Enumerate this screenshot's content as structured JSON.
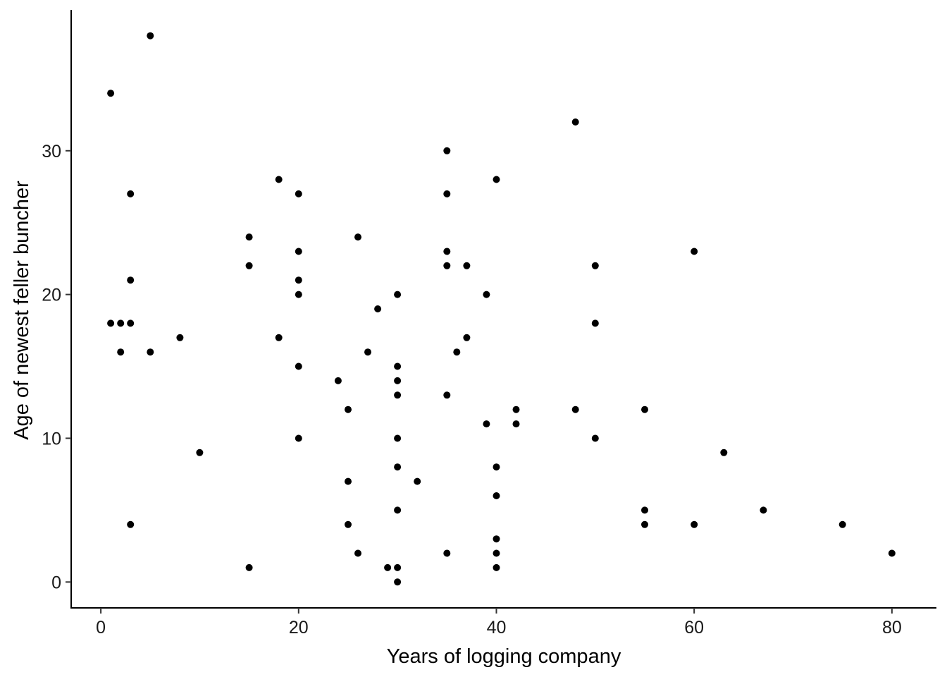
{
  "chart_data": {
    "type": "scatter",
    "title": "",
    "xlabel": "Years of logging company",
    "ylabel": "Age of newest feller buncher",
    "xlim": [
      -3,
      84.5
    ],
    "ylim": [
      -1.8,
      39.8
    ],
    "xticks": [
      0,
      20,
      40,
      60,
      80
    ],
    "yticks": [
      0,
      10,
      20,
      30
    ],
    "grid": false,
    "legend": "none",
    "point_color": "#000000",
    "points": [
      [
        1,
        34
      ],
      [
        1,
        18
      ],
      [
        2,
        18
      ],
      [
        2,
        16
      ],
      [
        3,
        27
      ],
      [
        3,
        21
      ],
      [
        3,
        18
      ],
      [
        3,
        4
      ],
      [
        5,
        38
      ],
      [
        5,
        16
      ],
      [
        8,
        17
      ],
      [
        10,
        9
      ],
      [
        15,
        24
      ],
      [
        15,
        22
      ],
      [
        15,
        1
      ],
      [
        18,
        28
      ],
      [
        18,
        17
      ],
      [
        20,
        27
      ],
      [
        20,
        23
      ],
      [
        20,
        21
      ],
      [
        20,
        20
      ],
      [
        20,
        15
      ],
      [
        20,
        10
      ],
      [
        24,
        14
      ],
      [
        25,
        12
      ],
      [
        25,
        7
      ],
      [
        25,
        4
      ],
      [
        26,
        24
      ],
      [
        26,
        2
      ],
      [
        27,
        16
      ],
      [
        28,
        19
      ],
      [
        29,
        1
      ],
      [
        30,
        20
      ],
      [
        30,
        15
      ],
      [
        30,
        14
      ],
      [
        30,
        13
      ],
      [
        30,
        10
      ],
      [
        30,
        8
      ],
      [
        30,
        5
      ],
      [
        30,
        1
      ],
      [
        30,
        0
      ],
      [
        32,
        7
      ],
      [
        35,
        30
      ],
      [
        35,
        27
      ],
      [
        35,
        23
      ],
      [
        35,
        22
      ],
      [
        35,
        13
      ],
      [
        35,
        2
      ],
      [
        36,
        16
      ],
      [
        37,
        22
      ],
      [
        37,
        17
      ],
      [
        39,
        20
      ],
      [
        39,
        11
      ],
      [
        40,
        28
      ],
      [
        40,
        8
      ],
      [
        40,
        6
      ],
      [
        40,
        3
      ],
      [
        40,
        2
      ],
      [
        40,
        1
      ],
      [
        42,
        12
      ],
      [
        42,
        11
      ],
      [
        48,
        32
      ],
      [
        48,
        12
      ],
      [
        50,
        22
      ],
      [
        50,
        18
      ],
      [
        50,
        10
      ],
      [
        55,
        12
      ],
      [
        55,
        5
      ],
      [
        55,
        4
      ],
      [
        60,
        23
      ],
      [
        60,
        4
      ],
      [
        63,
        9
      ],
      [
        67,
        5
      ],
      [
        75,
        4
      ],
      [
        80,
        2
      ]
    ]
  }
}
